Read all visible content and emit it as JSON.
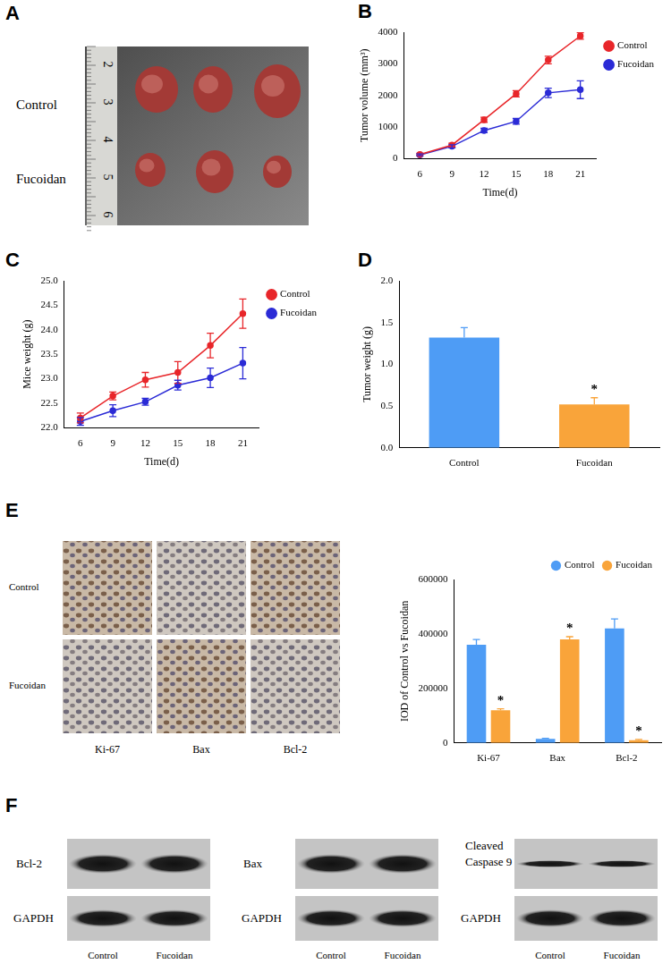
{
  "images": {
    "A": {
      "panel": "A",
      "row_labels": [
        "Control",
        "Fucoidan"
      ],
      "ruler_labels": [
        "2",
        "3",
        "4",
        "5",
        "6"
      ]
    },
    "E": {
      "panel": "E",
      "row_labels": [
        "Control",
        "Fucoidan"
      ],
      "column_labels": [
        "Ki-67",
        "Bax",
        "Bcl-2"
      ]
    },
    "F": {
      "panel": "F",
      "blots": [
        {
          "target": "Bcl-2",
          "loading_control": "GAPDH"
        },
        {
          "target": "Bax",
          "loading_control": "GAPDH"
        },
        {
          "target": "Cleaved Caspase 9",
          "loading_control": "GAPDH"
        }
      ],
      "lane_labels": [
        "Control",
        "Fucoidan"
      ]
    }
  },
  "chart_data": [
    {
      "panel": "B",
      "type": "line",
      "x_label": "Time(d)",
      "y_label": "Tumor volume (mm³)",
      "categories": [
        "6",
        "9",
        "12",
        "15",
        "18",
        "21"
      ],
      "series": [
        {
          "name": "Control",
          "color": "#e8262a",
          "values": [
            130,
            430,
            1230,
            2050,
            3120,
            3880
          ],
          "errors": [
            40,
            60,
            80,
            100,
            120,
            100
          ]
        },
        {
          "name": "Fucoidan",
          "color": "#2b2bd6",
          "values": [
            120,
            390,
            890,
            1180,
            2080,
            2180
          ],
          "errors": [
            30,
            50,
            70,
            90,
            150,
            280
          ]
        }
      ],
      "ylim": [
        0,
        4000
      ],
      "yticks": [
        0,
        1000,
        2000,
        3000,
        4000
      ],
      "grid": false,
      "legend": "right",
      "marker": "circle"
    },
    {
      "panel": "C",
      "type": "line",
      "x_label": "Time(d)",
      "y_label": "Mice weight (g)",
      "categories": [
        "6",
        "9",
        "12",
        "15",
        "18",
        "21"
      ],
      "series": [
        {
          "name": "Control",
          "color": "#e8262a",
          "values": [
            22.2,
            22.65,
            22.98,
            23.13,
            23.68,
            24.33
          ],
          "errors": [
            0.1,
            0.08,
            0.15,
            0.22,
            0.25,
            0.3
          ]
        },
        {
          "name": "Fucoidan",
          "color": "#2b2bd6",
          "values": [
            22.13,
            22.35,
            22.53,
            22.87,
            23.02,
            23.32
          ],
          "errors": [
            0.08,
            0.12,
            0.07,
            0.1,
            0.2,
            0.32
          ]
        }
      ],
      "ylim": [
        22,
        25
      ],
      "yticks": [
        {
          "value": 22,
          "label": "22.0"
        },
        {
          "value": 22.5,
          "label": "22.5"
        },
        {
          "value": 23,
          "label": "23.0"
        },
        {
          "value": 23.5,
          "label": "23.5"
        },
        {
          "value": 24,
          "label": "24.0"
        },
        {
          "value": 24.5,
          "label": "24.5"
        },
        {
          "value": 25,
          "label": "25.0"
        }
      ],
      "grid": false,
      "legend": "right",
      "marker": "circle"
    },
    {
      "panel": "D",
      "type": "bar",
      "y_label": "Tumor weight (g)",
      "categories": [
        "Control",
        "Fucoidan"
      ],
      "values": [
        1.32,
        0.52
      ],
      "errors": [
        0.12,
        0.08
      ],
      "colors": [
        "#4e9cf5",
        "#f9a43a"
      ],
      "ylim": [
        0,
        2
      ],
      "yticks": [
        {
          "value": 0,
          "label": "0.0"
        },
        {
          "value": 0.5,
          "label": "0.5"
        },
        {
          "value": 1,
          "label": "1.0"
        },
        {
          "value": 1.5,
          "label": "1.5"
        },
        {
          "value": 2,
          "label": "2.0"
        }
      ],
      "grid": false,
      "annotations": [
        {
          "category": "Fucoidan",
          "text": "*"
        }
      ]
    },
    {
      "type": "bar",
      "y_label": "IOD of Control vs Fucoidan",
      "categories": [
        "Ki-67",
        "Bax",
        "Bcl-2"
      ],
      "series": [
        {
          "name": "Control",
          "color": "#4e9cf5",
          "values": [
            360000,
            15000,
            420000
          ],
          "errors": [
            20000,
            2000,
            35000
          ]
        },
        {
          "name": "Fucoidan",
          "color": "#f9a43a",
          "values": [
            120000,
            380000,
            10000
          ],
          "errors": [
            5000,
            10000,
            3000
          ]
        }
      ],
      "ylim": [
        0,
        600000
      ],
      "yticks": [
        0,
        200000,
        400000,
        600000
      ],
      "grid": false,
      "legend": "top",
      "annotations": [
        {
          "category": "Ki-67",
          "series": "Fucoidan",
          "text": "*"
        },
        {
          "category": "Bax",
          "series": "Fucoidan",
          "text": "*"
        },
        {
          "category": "Bcl-2",
          "series": "Fucoidan",
          "text": "*"
        }
      ]
    }
  ]
}
